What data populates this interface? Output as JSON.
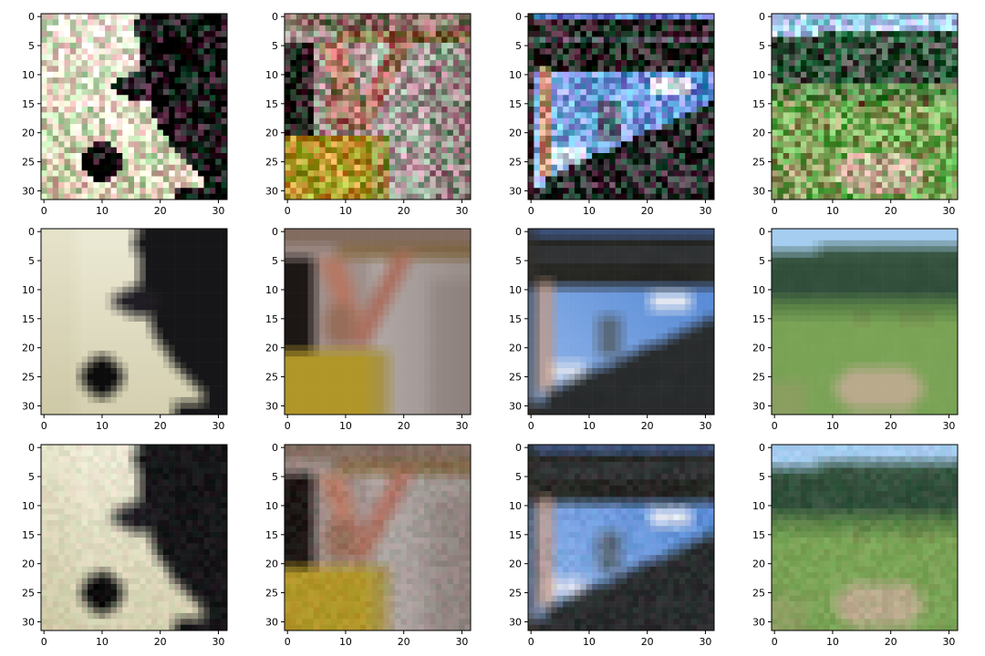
{
  "chart_data": {
    "type": "image-grid",
    "grid": {
      "rows": 3,
      "cols": 4
    },
    "image_size": 32,
    "xticks": [
      0,
      10,
      20,
      30
    ],
    "yticks": [
      0,
      5,
      10,
      15,
      20,
      25,
      30
    ],
    "xlim": [
      -0.5,
      31.5
    ],
    "ylim": [
      31.5,
      -0.5
    ],
    "row_variants": [
      "noisy",
      "smooth",
      "denoised"
    ],
    "columns": [
      {
        "subject": "panda-face"
      },
      {
        "subject": "person-in-yellow-shirt"
      },
      {
        "subject": "sky-through-frame"
      },
      {
        "subject": "grassland-hills"
      }
    ]
  }
}
